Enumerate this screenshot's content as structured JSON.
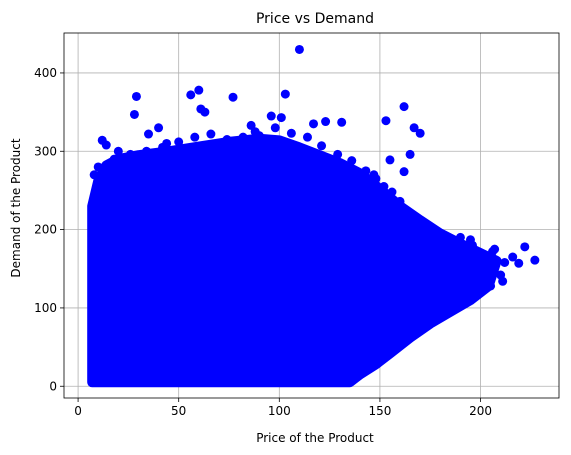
{
  "chart_data": {
    "type": "scatter",
    "title": "Price vs Demand",
    "xlabel": "Price of the Product",
    "ylabel": "Demand of the Product",
    "xlim": [
      -7,
      239
    ],
    "ylim": [
      -15,
      451
    ],
    "xticks": [
      0,
      50,
      100,
      150,
      200
    ],
    "yticks": [
      0,
      100,
      200,
      300,
      400
    ],
    "grid": true,
    "color": "#0000ff",
    "series": [
      {
        "points": [
          [
            110,
            430
          ],
          [
            60,
            378
          ],
          [
            56,
            372
          ],
          [
            103,
            373
          ],
          [
            29,
            370
          ],
          [
            77,
            369
          ],
          [
            96,
            345
          ],
          [
            101,
            343
          ],
          [
            162,
            357
          ],
          [
            167,
            330
          ],
          [
            170,
            323
          ],
          [
            153,
            339
          ],
          [
            123,
            338
          ],
          [
            117,
            335
          ],
          [
            131,
            337
          ],
          [
            28,
            347
          ],
          [
            35,
            322
          ],
          [
            40,
            330
          ],
          [
            44,
            310
          ],
          [
            61,
            354
          ],
          [
            63,
            350
          ],
          [
            12,
            314
          ],
          [
            14,
            308
          ],
          [
            20,
            300
          ],
          [
            86,
            333
          ],
          [
            88,
            325
          ],
          [
            155,
            289
          ],
          [
            165,
            296
          ],
          [
            162,
            274
          ],
          [
            147,
            270
          ],
          [
            156,
            248
          ],
          [
            160,
            236
          ],
          [
            162,
            218
          ],
          [
            165,
            205
          ],
          [
            170,
            196
          ],
          [
            174,
            193
          ],
          [
            176,
            188
          ],
          [
            182,
            185
          ],
          [
            186,
            176
          ],
          [
            190,
            190
          ],
          [
            195,
            187
          ],
          [
            196,
            180
          ],
          [
            200,
            170
          ],
          [
            201,
            160
          ],
          [
            203,
            165
          ],
          [
            205,
            150
          ],
          [
            206,
            172
          ],
          [
            207,
            175
          ],
          [
            210,
            142
          ],
          [
            212,
            158
          ],
          [
            216,
            165
          ],
          [
            219,
            157
          ],
          [
            222,
            178
          ],
          [
            227,
            161
          ],
          [
            205,
            128
          ],
          [
            211,
            134
          ],
          [
            203,
            143
          ],
          [
            199,
            155
          ],
          [
            193,
            170
          ],
          [
            188,
            182
          ],
          [
            180,
            175
          ],
          [
            172,
            196
          ],
          [
            168,
            205
          ],
          [
            158,
            232
          ],
          [
            152,
            255
          ],
          [
            148,
            265
          ],
          [
            143,
            275
          ],
          [
            136,
            288
          ],
          [
            129,
            296
          ],
          [
            121,
            307
          ],
          [
            114,
            318
          ],
          [
            106,
            323
          ],
          [
            98,
            330
          ],
          [
            90,
            320
          ],
          [
            82,
            318
          ],
          [
            74,
            315
          ],
          [
            66,
            322
          ],
          [
            58,
            318
          ],
          [
            50,
            312
          ],
          [
            42,
            305
          ],
          [
            34,
            300
          ],
          [
            26,
            296
          ],
          [
            18,
            290
          ],
          [
            10,
            280
          ],
          [
            8,
            270
          ]
        ]
      }
    ],
    "cloud_outline": [
      [
        7,
        5
      ],
      [
        7,
        230
      ],
      [
        10,
        262
      ],
      [
        14,
        282
      ],
      [
        20,
        290
      ],
      [
        30,
        295
      ],
      [
        45,
        300
      ],
      [
        60,
        306
      ],
      [
        75,
        312
      ],
      [
        90,
        316
      ],
      [
        100,
        314
      ],
      [
        110,
        305
      ],
      [
        120,
        295
      ],
      [
        130,
        285
      ],
      [
        140,
        272
      ],
      [
        150,
        252
      ],
      [
        160,
        230
      ],
      [
        170,
        212
      ],
      [
        180,
        195
      ],
      [
        190,
        182
      ],
      [
        200,
        170
      ],
      [
        208,
        160
      ],
      [
        204,
        128
      ],
      [
        195,
        110
      ],
      [
        185,
        95
      ],
      [
        175,
        80
      ],
      [
        165,
        62
      ],
      [
        155,
        42
      ],
      [
        148,
        28
      ],
      [
        140,
        15
      ],
      [
        135,
        5
      ]
    ]
  }
}
